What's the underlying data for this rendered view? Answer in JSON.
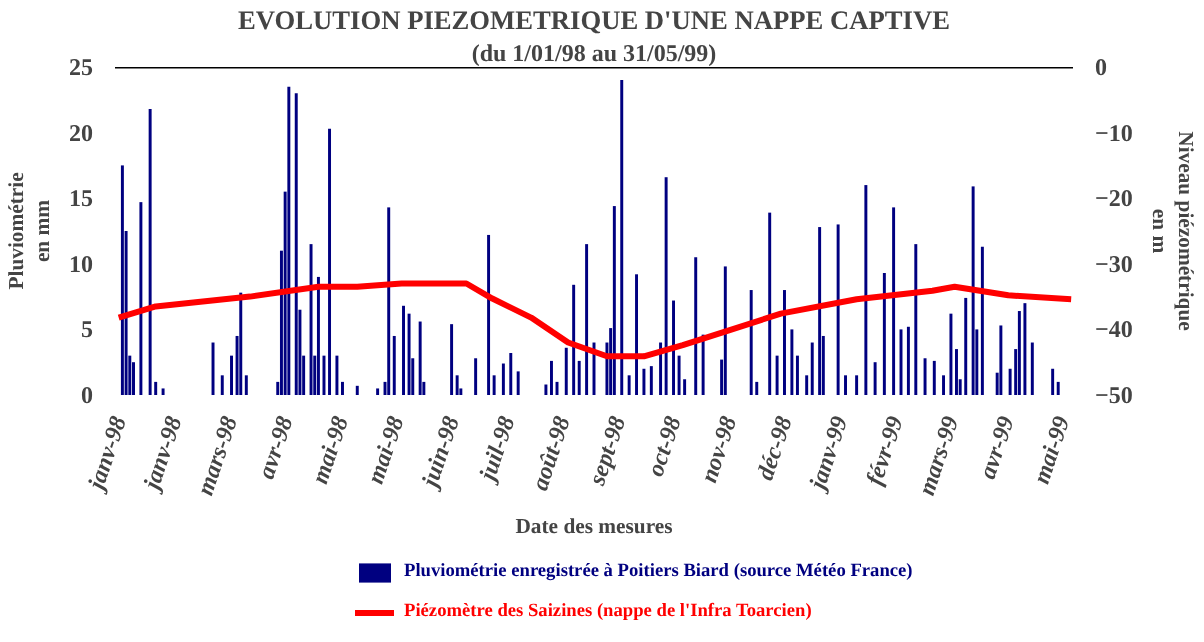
{
  "chart_data": {
    "type": "bar",
    "title": "EVOLUTION PIEZOMETRIQUE D'UNE NAPPE CAPTIVE",
    "subtitle": "(du 1/01/98 au 31/05/99)",
    "xlabel": "Date des mesures",
    "ylabel": "Pluviométrie en mm",
    "y2label": "Niveau piézométrique en m",
    "xlim": [
      "1997-12-30",
      "1999-06-01"
    ],
    "xticks": [
      {
        "value": "1998-01-01",
        "label": "janv-98"
      },
      {
        "value": "1998-01-31",
        "label": "janv-98"
      },
      {
        "value": "1998-03-02",
        "label": "mars-98"
      },
      {
        "value": "1998-04-01",
        "label": "avr-98"
      },
      {
        "value": "1998-05-01",
        "label": "mai-98"
      },
      {
        "value": "1998-05-31",
        "label": "mai-98"
      },
      {
        "value": "1998-06-30",
        "label": "juin-98"
      },
      {
        "value": "1998-07-30",
        "label": "juil-98"
      },
      {
        "value": "1998-08-29",
        "label": "août-98"
      },
      {
        "value": "1998-09-28",
        "label": "sept-98"
      },
      {
        "value": "1998-10-28",
        "label": "oct-98"
      },
      {
        "value": "1998-11-27",
        "label": "nov-98"
      },
      {
        "value": "1998-12-27",
        "label": "déc-98"
      },
      {
        "value": "1999-01-26",
        "label": "janv-99"
      },
      {
        "value": "1999-02-25",
        "label": "févr-99"
      },
      {
        "value": "1999-03-27",
        "label": "mars-99"
      },
      {
        "value": "1999-04-26",
        "label": "avr-99"
      },
      {
        "value": "1999-05-26",
        "label": "mai-99"
      }
    ],
    "ylim": [
      0,
      25
    ],
    "yticks": [
      0,
      5,
      10,
      15,
      20,
      25
    ],
    "y2lim": [
      -50,
      0
    ],
    "y2ticks": [
      -50,
      -40,
      -30,
      -20,
      -10,
      0
    ],
    "grid": false,
    "legend": "bottom",
    "series": [
      {
        "name": "Pluviométrie enregistrée à Poitiers Biard (source Météo France)",
        "color": "#000080",
        "x": [
          "1998-01-03",
          "1998-01-05",
          "1998-01-07",
          "1998-01-09",
          "1998-01-13",
          "1998-01-18",
          "1998-01-21",
          "1998-01-25",
          "1998-02-21",
          "1998-02-26",
          "1998-03-03",
          "1998-03-06",
          "1998-03-08",
          "1998-03-11",
          "1998-03-28",
          "1998-03-30",
          "1998-04-01",
          "1998-04-03",
          "1998-04-07",
          "1998-04-09",
          "1998-04-11",
          "1998-04-15",
          "1998-04-17",
          "1998-04-19",
          "1998-04-22",
          "1998-04-25",
          "1998-04-29",
          "1998-05-02",
          "1998-05-10",
          "1998-05-21",
          "1998-05-25",
          "1998-05-27",
          "1998-05-30",
          "1998-06-04",
          "1998-06-07",
          "1998-06-09",
          "1998-06-13",
          "1998-06-15",
          "1998-06-30",
          "1998-07-03",
          "1998-07-05",
          "1998-07-13",
          "1998-07-20",
          "1998-07-23",
          "1998-07-28",
          "1998-08-01",
          "1998-08-05",
          "1998-08-20",
          "1998-08-23",
          "1998-08-26",
          "1998-08-31",
          "1998-09-04",
          "1998-09-07",
          "1998-09-11",
          "1998-09-15",
          "1998-09-22",
          "1998-09-24",
          "1998-09-26",
          "1998-09-30",
          "1998-10-04",
          "1998-10-08",
          "1998-10-12",
          "1998-10-16",
          "1998-10-21",
          "1998-10-24",
          "1998-10-28",
          "1998-10-31",
          "1998-11-03",
          "1998-11-09",
          "1998-11-13",
          "1998-11-23",
          "1998-11-25",
          "1998-12-09",
          "1998-12-12",
          "1998-12-19",
          "1998-12-23",
          "1998-12-27",
          "1998-12-31",
          "1999-01-03",
          "1999-01-08",
          "1999-01-11",
          "1999-01-15",
          "1999-01-17",
          "1999-01-25",
          "1999-01-29",
          "1999-02-04",
          "1999-02-09",
          "1999-02-14",
          "1999-02-19",
          "1999-02-24",
          "1999-02-28",
          "1999-03-04",
          "1999-03-08",
          "1999-03-13",
          "1999-03-18",
          "1999-03-23",
          "1999-03-27",
          "1999-03-30",
          "1999-04-01",
          "1999-04-04",
          "1999-04-08",
          "1999-04-10",
          "1999-04-13",
          "1999-04-21",
          "1999-04-23",
          "1999-04-28",
          "1999-05-01",
          "1999-05-03",
          "1999-05-06",
          "1999-05-10",
          "1999-05-21",
          "1999-05-24"
        ],
        "values": [
          17.5,
          12.5,
          3,
          2.5,
          14.7,
          21.8,
          1,
          0.5,
          4,
          1.5,
          3,
          4.5,
          7.8,
          1.5,
          1,
          11,
          15.5,
          23.5,
          23,
          6.5,
          3,
          11.5,
          3,
          9,
          3,
          20.3,
          3,
          1,
          0.7,
          0.5,
          1,
          14.3,
          4.5,
          6.8,
          6.2,
          2.8,
          5.6,
          1,
          5.4,
          1.5,
          0.5,
          2.8,
          12.2,
          1.5,
          2.4,
          3.2,
          1.8,
          0.8,
          2.6,
          1,
          3.6,
          8.4,
          2.6,
          11.5,
          4,
          4,
          5.1,
          14.4,
          24,
          1.5,
          9.2,
          2,
          2.2,
          4,
          16.6,
          7.2,
          3,
          1.2,
          10.5,
          4.6,
          2.7,
          9.8,
          8,
          1,
          13.9,
          3,
          8,
          5,
          3,
          1.5,
          4,
          12.8,
          4.5,
          13,
          1.5,
          1.5,
          16,
          2.5,
          9.3,
          14.3,
          5,
          5.2,
          11.5,
          2.8,
          2.6,
          1.5,
          6.2,
          3.5,
          1.2,
          7.4,
          15.9,
          5,
          11.3,
          1.7,
          5.3,
          2,
          3.5,
          6.4,
          7,
          4,
          2,
          1
        ]
      },
      {
        "name": "Piézomètre des Saizines (nappe de l'Infra Toarcien)",
        "type": "line",
        "axis": "y2",
        "color": "#ff0000",
        "x": [
          "1998-01-01",
          "1998-01-21",
          "1998-03-13",
          "1998-04-19",
          "1998-05-10",
          "1998-06-03",
          "1998-07-08",
          "1998-07-22",
          "1998-08-12",
          "1998-09-01",
          "1998-09-22",
          "1998-10-12",
          "1998-11-02",
          "1998-11-24",
          "1998-12-25",
          "1999-02-04",
          "1999-03-17",
          "1999-03-29",
          "1999-04-27",
          "1999-05-31"
        ],
        "values": [
          -38.2,
          -36.5,
          -35,
          -33.5,
          -33.5,
          -33,
          -33,
          -35.3,
          -38.2,
          -42,
          -44.1,
          -44.1,
          -42.4,
          -40.4,
          -37.6,
          -35.4,
          -34.1,
          -33.5,
          -34.8,
          -35.4
        ]
      }
    ]
  }
}
